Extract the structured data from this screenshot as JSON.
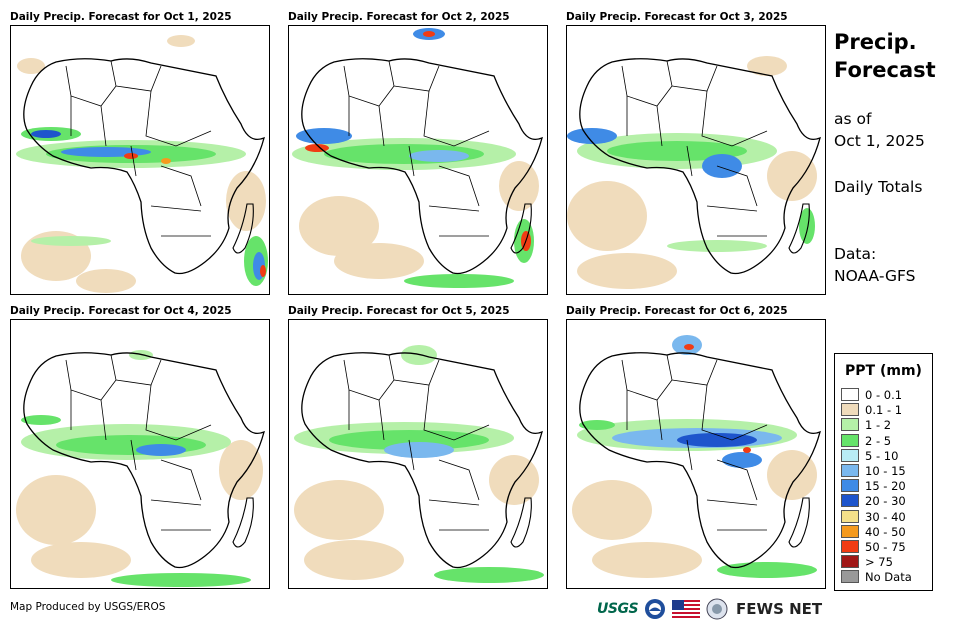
{
  "panels": [
    {
      "title": "Daily Precip. Forecast for Oct 1, 2025"
    },
    {
      "title": "Daily Precip. Forecast for Oct 2, 2025"
    },
    {
      "title": "Daily Precip. Forecast for Oct 3, 2025"
    },
    {
      "title": "Daily Precip. Forecast for Oct 4, 2025"
    },
    {
      "title": "Daily Precip. Forecast for Oct 5, 2025"
    },
    {
      "title": "Daily Precip. Forecast for Oct 6, 2025"
    }
  ],
  "side": {
    "title_line1": "Precip.",
    "title_line2": "Forecast",
    "asof_line1": "as of",
    "asof_line2": "Oct 1, 2025",
    "totals": "Daily Totals",
    "data_line1": "Data:",
    "data_line2": "NOAA-GFS"
  },
  "legend": {
    "title": "PPT (mm)",
    "items": [
      {
        "label": "0 - 0.1",
        "color": "#ffffff"
      },
      {
        "label": "0.1 - 1",
        "color": "#f0dcbc"
      },
      {
        "label": "1 - 2",
        "color": "#b5f0a8"
      },
      {
        "label": "2 - 5",
        "color": "#66e36a"
      },
      {
        "label": "5 - 10",
        "color": "#b9ecf5"
      },
      {
        "label": "10 - 15",
        "color": "#7ab8ee"
      },
      {
        "label": "15 - 20",
        "color": "#3f8be6"
      },
      {
        "label": "20 - 30",
        "color": "#1e55cc"
      },
      {
        "label": "30 - 40",
        "color": "#f5e08a"
      },
      {
        "label": "40 - 50",
        "color": "#f59a1e"
      },
      {
        "label": "50 - 75",
        "color": "#f03c14"
      },
      {
        "label": "> 75",
        "color": "#a01818"
      },
      {
        "label": "No Data",
        "color": "#999999"
      }
    ]
  },
  "footer": {
    "credit": "Map Produced by USGS/EROS",
    "usgs_logo": "USGS",
    "fewsnet_logo": "FEWS NET"
  }
}
